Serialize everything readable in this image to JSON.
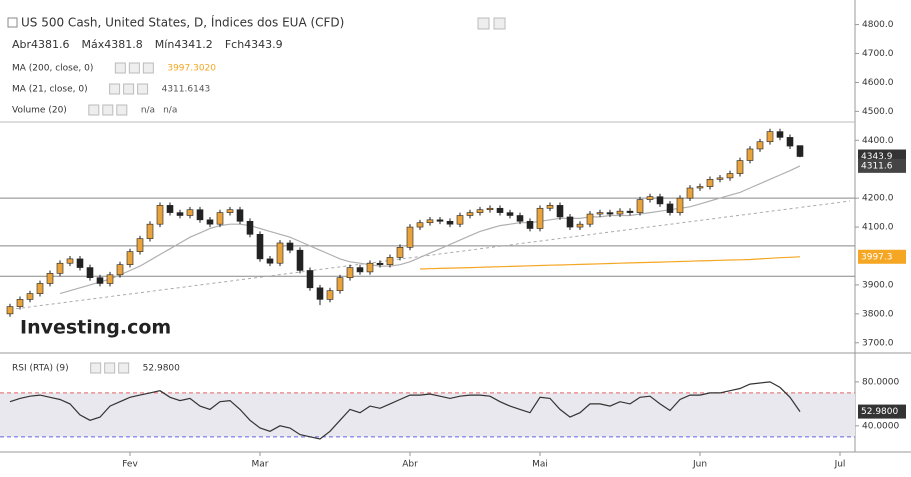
{
  "chart_data": [
    {
      "type": "candlestick",
      "title": "US 500 Cash, United States, D, Índices dos EUA (CFD)",
      "ohlc_labels": [
        "Abr",
        "Máx",
        "Mín",
        "Fch"
      ],
      "up_color": "#e8a33d",
      "down_color": "#222222",
      "open": [
        3800,
        3825,
        3850,
        3870,
        3905,
        3940,
        3975,
        3990,
        3960,
        3925,
        3905,
        3935,
        3970,
        4015,
        4060,
        4110,
        4175,
        4150,
        4140,
        4160,
        4125,
        4110,
        4150,
        4160,
        4120,
        4075,
        3990,
        3975,
        4045,
        4020,
        3950,
        3890,
        3850,
        3880,
        3925,
        3960,
        3945,
        3975,
        3970,
        3995,
        4030,
        4100,
        4115,
        4125,
        4120,
        4110,
        4140,
        4150,
        4160,
        4165,
        4150,
        4140,
        4120,
        4095,
        4165,
        4175,
        4135,
        4100,
        4110,
        4145,
        4150,
        4145,
        4155,
        4150,
        4195,
        4205,
        4180,
        4150,
        4200,
        4235,
        4240,
        4265,
        4270,
        4285,
        4330,
        4370,
        4395,
        4430,
        4410,
        4381.6
      ],
      "high": [
        3835,
        3860,
        3880,
        3915,
        3950,
        3985,
        4000,
        4000,
        3970,
        3935,
        3945,
        3980,
        4025,
        4070,
        4120,
        4185,
        4185,
        4160,
        4170,
        4170,
        4135,
        4160,
        4170,
        4170,
        4130,
        4085,
        4000,
        4055,
        4055,
        4030,
        3960,
        3900,
        3890,
        3935,
        3970,
        3970,
        3985,
        3985,
        4005,
        4040,
        4110,
        4125,
        4135,
        4135,
        4130,
        4150,
        4160,
        4170,
        4175,
        4175,
        4160,
        4150,
        4130,
        4175,
        4185,
        4185,
        4145,
        4120,
        4155,
        4160,
        4160,
        4165,
        4165,
        4205,
        4215,
        4215,
        4190,
        4210,
        4245,
        4250,
        4275,
        4280,
        4295,
        4340,
        4380,
        4405,
        4440,
        4440,
        4420,
        4381.8
      ],
      "low": [
        3790,
        3815,
        3840,
        3860,
        3895,
        3930,
        3965,
        3950,
        3915,
        3895,
        3895,
        3925,
        3960,
        4005,
        4050,
        4100,
        4140,
        4130,
        4130,
        4115,
        4100,
        4100,
        4140,
        4110,
        4065,
        3980,
        3965,
        3965,
        4010,
        3940,
        3880,
        3830,
        3840,
        3870,
        3915,
        3935,
        3935,
        3960,
        3960,
        3985,
        4020,
        4090,
        4105,
        4110,
        4100,
        4100,
        4130,
        4140,
        4150,
        4140,
        4130,
        4110,
        4085,
        4085,
        4155,
        4125,
        4090,
        4090,
        4100,
        4135,
        4135,
        4135,
        4140,
        4140,
        4185,
        4170,
        4140,
        4140,
        4190,
        4225,
        4230,
        4255,
        4260,
        4275,
        4320,
        4360,
        4385,
        4400,
        4370,
        4341.2
      ],
      "close": [
        3825,
        3850,
        3870,
        3905,
        3940,
        3975,
        3990,
        3960,
        3925,
        3905,
        3935,
        3970,
        4015,
        4060,
        4110,
        4175,
        4150,
        4140,
        4160,
        4125,
        4110,
        4150,
        4160,
        4120,
        4075,
        3990,
        3975,
        4045,
        4020,
        3950,
        3890,
        3850,
        3880,
        3925,
        3960,
        3945,
        3975,
        3970,
        3995,
        4030,
        4100,
        4115,
        4125,
        4120,
        4110,
        4140,
        4150,
        4160,
        4165,
        4150,
        4140,
        4120,
        4095,
        4165,
        4175,
        4135,
        4100,
        4110,
        4145,
        4150,
        4145,
        4155,
        4150,
        4195,
        4205,
        4180,
        4150,
        4200,
        4235,
        4240,
        4265,
        4270,
        4285,
        4330,
        4370,
        4395,
        4430,
        4410,
        4380,
        4343.9
      ],
      "indicators": [
        {
          "name": "MA (200, close, 0)",
          "color": "#f5a623",
          "legend_label": "3997.3020",
          "tag_label": "3997.3",
          "values": [
            null,
            null,
            null,
            null,
            null,
            null,
            null,
            null,
            null,
            null,
            null,
            null,
            null,
            null,
            null,
            null,
            null,
            null,
            null,
            null,
            null,
            null,
            null,
            null,
            null,
            null,
            null,
            null,
            null,
            null,
            null,
            null,
            null,
            null,
            null,
            null,
            null,
            null,
            null,
            null,
            null,
            3955,
            3956,
            3957,
            3958,
            3959,
            3960,
            3961,
            3962,
            3963,
            3964,
            3965,
            3966,
            3967,
            3968,
            3969,
            3970,
            3971,
            3972,
            3973,
            3974,
            3975,
            3976,
            3977,
            3978,
            3979,
            3980,
            3981,
            3982,
            3983,
            3984,
            3985,
            3986,
            3987,
            3988,
            3990,
            3992,
            3994,
            3995.5,
            3997.302
          ]
        },
        {
          "name": "MA (21, close, 0)",
          "color": "#b0b0b0",
          "tag_label": "4311.6",
          "values": [
            null,
            null,
            null,
            null,
            null,
            3870,
            3880,
            3890,
            3900,
            3910,
            3920,
            3935,
            3950,
            3965,
            3985,
            4005,
            4025,
            4045,
            4065,
            4080,
            4095,
            4105,
            4110,
            4110,
            4105,
            4095,
            4085,
            4075,
            4065,
            4050,
            4035,
            4020,
            4005,
            3990,
            3980,
            3975,
            3970,
            3965,
            3965,
            3970,
            3980,
            3995,
            4010,
            4025,
            4040,
            4055,
            4070,
            4085,
            4095,
            4105,
            4110,
            4115,
            4115,
            4120,
            4125,
            4130,
            4130,
            4130,
            4135,
            4135,
            4140,
            4140,
            4140,
            4145,
            4150,
            4155,
            4160,
            4165,
            4170,
            4180,
            4190,
            4200,
            4210,
            4220,
            4235,
            4250,
            4265,
            4280,
            4295,
            4311.6143
          ]
        }
      ],
      "volume": {
        "name": "Volume (20)",
        "values_text": [
          "n/a",
          "n/a"
        ]
      },
      "trend_line": {
        "x": [
          0,
          84
        ],
        "y": [
          3815,
          4190
        ]
      },
      "levels": [
        4200,
        4035,
        3930
      ],
      "watermark": "Investing.com",
      "xlim": [
        -0.5,
        84.5
      ],
      "ylim": [
        3675,
        4885
      ],
      "yticks": [
        {
          "value": 4800,
          "label": "4800.0"
        },
        {
          "value": 4700,
          "label": "4700.0"
        },
        {
          "value": 4600,
          "label": "4600.0"
        },
        {
          "value": 4500,
          "label": "4500.0"
        },
        {
          "value": 4400,
          "label": "4400.0"
        },
        {
          "value": 4200,
          "label": "4200.0"
        },
        {
          "value": 4100,
          "label": "4100.0"
        },
        {
          "value": 3900,
          "label": "3900.0"
        },
        {
          "value": 3800,
          "label": "3800.0"
        },
        {
          "value": 3700,
          "label": "3700.0"
        }
      ]
    },
    {
      "type": "line",
      "name": "RSI (RTA) (9)",
      "color": "#333333",
      "value_label": "52.9800",
      "values": [
        62,
        65,
        67,
        68,
        66,
        64,
        60,
        50,
        45,
        48,
        58,
        62,
        66,
        68,
        70,
        72,
        66,
        63,
        65,
        58,
        55,
        62,
        63,
        55,
        45,
        38,
        35,
        40,
        38,
        32,
        30,
        28,
        35,
        45,
        55,
        52,
        58,
        56,
        60,
        64,
        68,
        68,
        69,
        67,
        65,
        67,
        68,
        68,
        67,
        62,
        58,
        55,
        52,
        66,
        65,
        55,
        48,
        52,
        60,
        60,
        58,
        62,
        60,
        66,
        67,
        60,
        54,
        64,
        68,
        68,
        70,
        70,
        72,
        74,
        78,
        79,
        80,
        75,
        66,
        52.98
      ],
      "levels": [
        70,
        30
      ],
      "level_colors": [
        "#e06666",
        "#6666e0"
      ],
      "xlim": [
        -0.5,
        84.5
      ],
      "ylim": [
        18,
        104.5
      ],
      "yticks": [
        {
          "value": 80,
          "label": "80.0000"
        },
        {
          "value": 40,
          "label": "40.0000"
        }
      ],
      "xticks": [
        {
          "value": 12,
          "label": "Fev"
        },
        {
          "value": 25,
          "label": "Mar"
        },
        {
          "value": 40,
          "label": "Abr"
        },
        {
          "value": 53,
          "label": "Mai"
        },
        {
          "value": 69,
          "label": "Jun"
        },
        {
          "value": 83,
          "label": "Jul"
        }
      ]
    }
  ]
}
